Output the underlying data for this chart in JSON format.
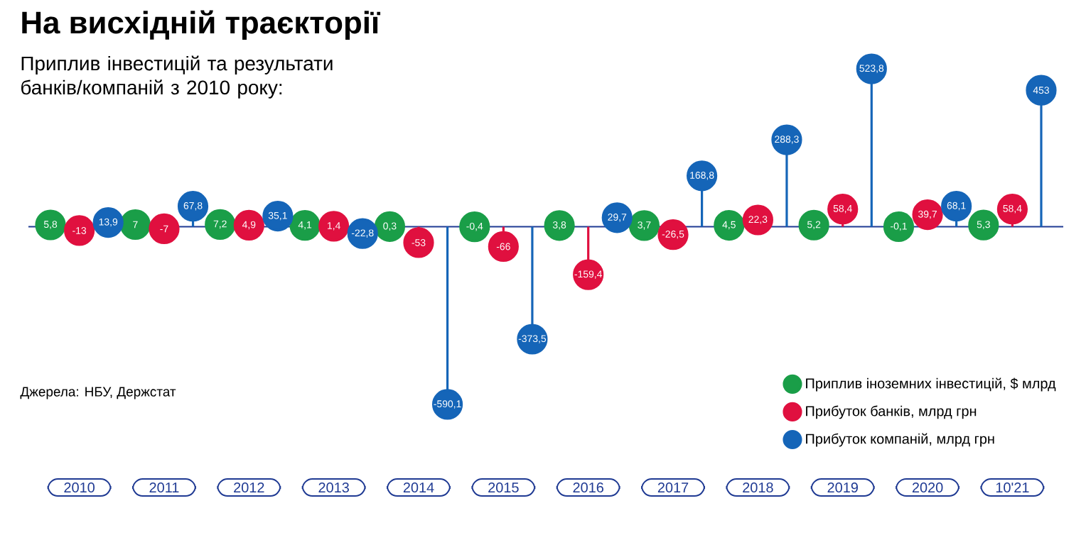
{
  "chart_data": {
    "type": "lollipop",
    "title": "На висхідній траєкторії",
    "subtitle": "Приплив інвестицій та результати банків/компаній з 2010 року:",
    "categories": [
      "2010",
      "2011",
      "2012",
      "2013",
      "2014",
      "2015",
      "2016",
      "2017",
      "2018",
      "2019",
      "2020",
      "10'21"
    ],
    "series": [
      {
        "name": "Приплив іноземних інвестицій, $ млрд",
        "color": "#1a9e48",
        "values": [
          5.8,
          7,
          7.2,
          4.1,
          0.3,
          -0.4,
          3.8,
          3.7,
          4.5,
          5.2,
          -0.1,
          5.3
        ],
        "value_labels": [
          "5,8",
          "7",
          "7,2",
          "4,1",
          "0,3",
          "-0,4",
          "3,8",
          "3,7",
          "4,5",
          "5,2",
          "-0,1",
          "5,3"
        ]
      },
      {
        "name": "Прибуток банків, млрд грн",
        "color": "#e0103f",
        "values": [
          -13,
          -7,
          4.9,
          1.4,
          -53,
          -66,
          -159.4,
          -26.5,
          22.3,
          58.4,
          39.7,
          58.4
        ],
        "value_labels": [
          "-13",
          "-7",
          "4,9",
          "1,4",
          "-53",
          "-66",
          "-159,4",
          "-26,5",
          "22,3",
          "58,4",
          "39,7",
          "58,4"
        ]
      },
      {
        "name": "Прибуток компаній, млрд грн",
        "color": "#1565b8",
        "values": [
          13.9,
          67.8,
          35.1,
          -22.8,
          -590.1,
          -373.5,
          29.7,
          168.8,
          288.3,
          523.8,
          68.1,
          453
        ],
        "value_labels": [
          "13,9",
          "67,8",
          "35,1",
          "-22,8",
          "-590,1",
          "-373,5",
          "29,7",
          "168,8",
          "288,3",
          "523,8",
          "68,1",
          "453"
        ]
      }
    ],
    "annotations": [
      "Джерела: НБУ, Держстат"
    ],
    "ref_lines": [
      {
        "axis": "y",
        "value": 0,
        "color": "#1f3a93"
      }
    ],
    "marker": "circle",
    "legend": "bottom right"
  }
}
